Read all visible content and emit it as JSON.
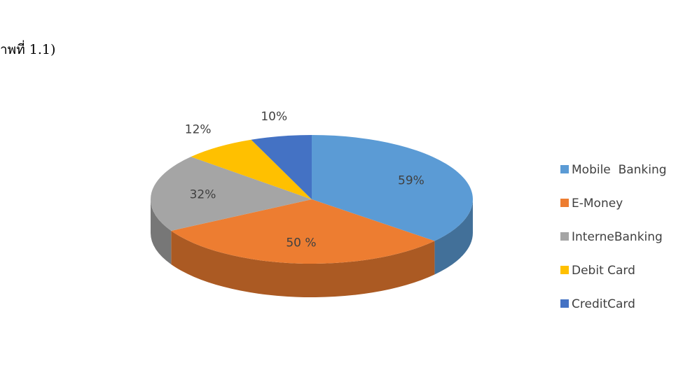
{
  "chart_data": {
    "type": "pie3d",
    "annotation": "าพที่ 1.1)",
    "categories": [
      "Mobile  Banking",
      "E-Money",
      "InterneBanking",
      "Debit Card",
      "CreditCard"
    ],
    "values": [
      59,
      50,
      32,
      12,
      10
    ],
    "value_labels": [
      "59%",
      "50 %",
      "32%",
      "12%",
      "10%"
    ],
    "colors": [
      "#5b9bd5",
      "#ed7d31",
      "#a5a5a5",
      "#ffc000",
      "#4472c4"
    ],
    "legend": "right"
  }
}
